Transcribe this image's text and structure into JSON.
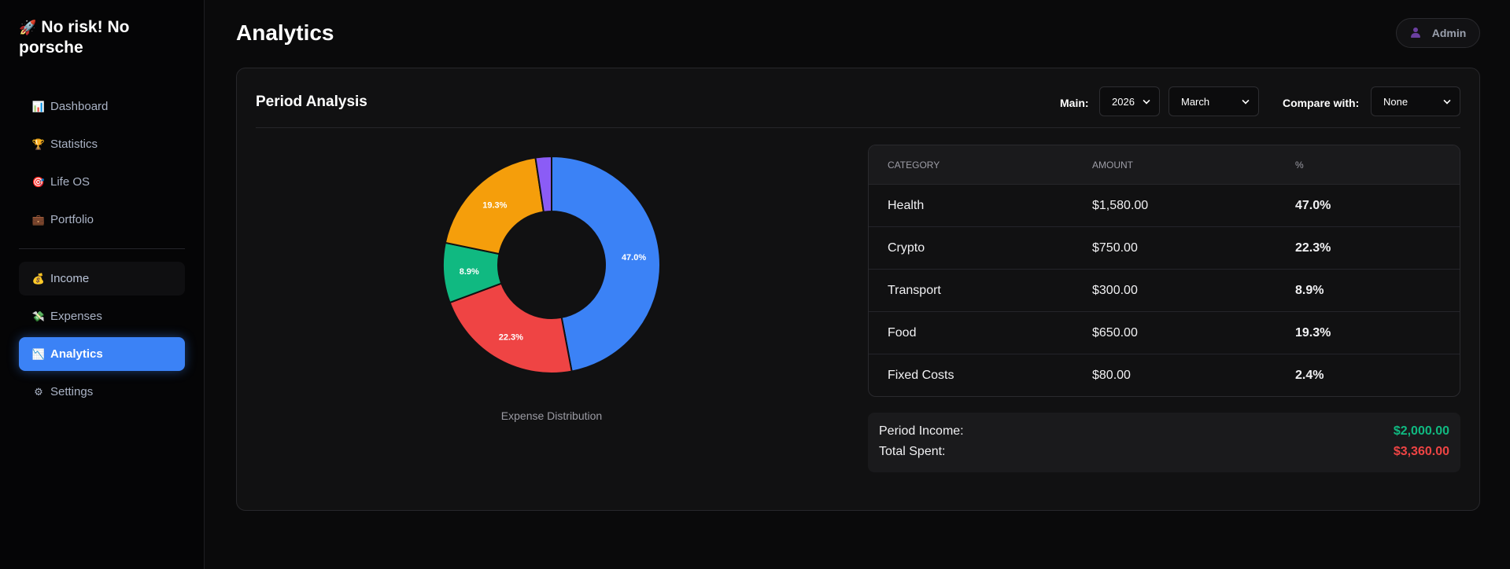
{
  "app": {
    "brand_icon": "rocket-icon",
    "brand": "No risk! No porsche"
  },
  "sidebar": {
    "items": [
      {
        "label": "Dashboard",
        "icon": "bar-chart-icon",
        "glyph": "📊"
      },
      {
        "label": "Statistics",
        "icon": "trophy-icon",
        "glyph": "🏆"
      },
      {
        "label": "Life OS",
        "icon": "target-icon",
        "glyph": "🎯"
      },
      {
        "label": "Portfolio",
        "icon": "briefcase-icon",
        "glyph": "💼"
      },
      {
        "label": "Income",
        "icon": "money-bag-icon",
        "glyph": "💰"
      },
      {
        "label": "Expenses",
        "icon": "money-wings-icon",
        "glyph": "💸"
      },
      {
        "label": "Analytics",
        "icon": "chart-icon",
        "glyph": "📉"
      },
      {
        "label": "Settings",
        "icon": "gear-icon",
        "glyph": "⚙"
      }
    ],
    "active": "Analytics",
    "hovered": "Income"
  },
  "header": {
    "title": "Analytics",
    "user_label": "Admin",
    "user_icon": "user-icon"
  },
  "card": {
    "title": "Period Analysis",
    "main_label": "Main:",
    "year_value": "2026",
    "month_value": "March",
    "compare_label": "Compare with:",
    "compare_value": "None"
  },
  "chart_data": {
    "type": "pie",
    "title": "",
    "caption": "Expense Distribution",
    "categories": [
      "Health",
      "Crypto",
      "Transport",
      "Food",
      "Fixed Costs"
    ],
    "values": [
      1580,
      750,
      300,
      650,
      80
    ],
    "labels": [
      "47.0%",
      "22.3%",
      "8.9%",
      "19.3%",
      ""
    ],
    "colors": [
      "#3b82f6",
      "#ef4444",
      "#10b981",
      "#f59e0b",
      "#8b5cf6"
    ],
    "donut": true
  },
  "table": {
    "headers": [
      "CATEGORY",
      "AMOUNT",
      "%"
    ],
    "rows": [
      {
        "category": "Health",
        "amount": "$1,580.00",
        "percent": "47.0%"
      },
      {
        "category": "Crypto",
        "amount": "$750.00",
        "percent": "22.3%"
      },
      {
        "category": "Transport",
        "amount": "$300.00",
        "percent": "8.9%"
      },
      {
        "category": "Food",
        "amount": "$650.00",
        "percent": "19.3%"
      },
      {
        "category": "Fixed Costs",
        "amount": "$80.00",
        "percent": "2.4%"
      }
    ]
  },
  "totals": {
    "income_label": "Period Income:",
    "income_value": "$2,000.00",
    "income_color": "#10b981",
    "spent_label": "Total Spent:",
    "spent_value": "$3,360.00",
    "spent_color": "#ef4444"
  }
}
